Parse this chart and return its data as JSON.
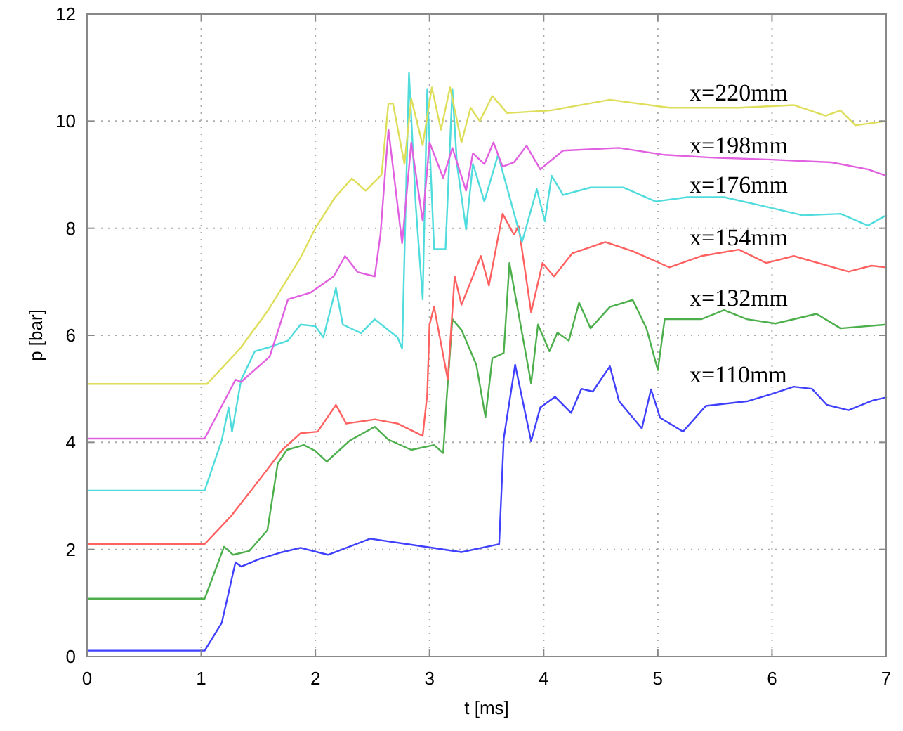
{
  "chart_data": {
    "type": "line",
    "xlabel": "t [ms]",
    "ylabel": "p [bar]",
    "xlim": [
      0,
      7
    ],
    "ylim": [
      0,
      12
    ],
    "xticks": [
      0,
      1,
      2,
      3,
      4,
      5,
      6,
      7
    ],
    "yticks": [
      0,
      2,
      4,
      6,
      8,
      10,
      12
    ],
    "grid": true,
    "line_style": "solid",
    "marker": "none",
    "series": [
      {
        "name": "x=110mm",
        "color": "#4040ff",
        "x": [
          0,
          1.03,
          1.18,
          1.3,
          1.35,
          1.51,
          1.71,
          1.87,
          2.11,
          2.48,
          2.8,
          3.28,
          3.61,
          3.65,
          3.75,
          3.89,
          3.97,
          4.1,
          4.24,
          4.33,
          4.43,
          4.58,
          4.66,
          4.86,
          4.94,
          5.02,
          5.22,
          5.42,
          5.79,
          5.99,
          6.19,
          6.35,
          6.48,
          6.67,
          6.88,
          7
        ],
        "values": [
          0.11,
          0.11,
          0.63,
          1.76,
          1.68,
          1.82,
          1.95,
          2.03,
          1.9,
          2.2,
          2.1,
          1.95,
          2.1,
          4.07,
          5.45,
          4.02,
          4.65,
          4.85,
          4.55,
          5.0,
          4.95,
          5.42,
          4.77,
          4.26,
          4.99,
          4.46,
          4.2,
          4.68,
          4.77,
          4.9,
          5.04,
          5.0,
          4.7,
          4.6,
          4.78,
          4.84
        ]
      },
      {
        "name": "x=132mm",
        "color": "#4caf4c",
        "x": [
          0,
          1.03,
          1.2,
          1.28,
          1.42,
          1.58,
          1.67,
          1.75,
          1.9,
          2.0,
          2.1,
          2.3,
          2.52,
          2.64,
          2.84,
          3.04,
          3.12,
          3.15,
          3.2,
          3.28,
          3.41,
          3.49,
          3.55,
          3.65,
          3.7,
          3.89,
          3.95,
          4.05,
          4.12,
          4.22,
          4.31,
          4.41,
          4.58,
          4.78,
          4.9,
          5.0,
          5.06,
          5.38,
          5.58,
          5.78,
          6.03,
          6.39,
          6.6,
          7
        ],
        "values": [
          1.08,
          1.08,
          2.05,
          1.9,
          1.97,
          2.36,
          3.6,
          3.86,
          3.95,
          3.84,
          3.64,
          4.03,
          4.29,
          4.05,
          3.86,
          3.95,
          3.8,
          4.82,
          6.3,
          6.1,
          5.45,
          4.47,
          5.57,
          5.67,
          7.35,
          5.1,
          6.2,
          5.7,
          6.05,
          5.9,
          6.61,
          6.13,
          6.53,
          6.66,
          6.13,
          5.35,
          6.3,
          6.3,
          6.47,
          6.3,
          6.22,
          6.4,
          6.13,
          6.2
        ]
      },
      {
        "name": "x=154mm",
        "color": "#ff6060",
        "x": [
          0,
          1.03,
          1.26,
          1.52,
          1.71,
          1.87,
          2.02,
          2.18,
          2.27,
          2.52,
          2.72,
          2.94,
          2.98,
          3.0,
          3.04,
          3.16,
          3.22,
          3.28,
          3.45,
          3.52,
          3.64,
          3.74,
          3.78,
          3.89,
          3.99,
          4.09,
          4.25,
          4.54,
          4.78,
          5.1,
          5.38,
          5.71,
          5.95,
          6.19,
          6.67,
          6.87,
          7
        ],
        "values": [
          2.1,
          2.1,
          2.62,
          3.33,
          3.86,
          4.17,
          4.2,
          4.7,
          4.35,
          4.43,
          4.35,
          4.12,
          4.9,
          6.2,
          6.53,
          5.17,
          7.1,
          6.57,
          7.48,
          6.93,
          8.27,
          7.88,
          8.04,
          6.43,
          7.35,
          7.1,
          7.53,
          7.74,
          7.57,
          7.27,
          7.48,
          7.6,
          7.35,
          7.48,
          7.19,
          7.3,
          7.27
        ]
      },
      {
        "name": "x=176mm",
        "color": "#50dcdc",
        "x": [
          0,
          1.03,
          1.18,
          1.24,
          1.27,
          1.35,
          1.47,
          1.6,
          1.76,
          1.87,
          2.0,
          2.07,
          2.18,
          2.24,
          2.4,
          2.52,
          2.72,
          2.76,
          2.82,
          2.88,
          2.94,
          2.98,
          3.04,
          3.14,
          3.2,
          3.24,
          3.32,
          3.38,
          3.48,
          3.6,
          3.81,
          3.94,
          4.01,
          4.07,
          4.17,
          4.41,
          4.7,
          4.98,
          5.26,
          5.58,
          5.91,
          6.27,
          6.6,
          6.84,
          7
        ],
        "values": [
          3.1,
          3.1,
          4.04,
          4.65,
          4.2,
          5.17,
          5.7,
          5.78,
          5.9,
          6.2,
          6.17,
          5.96,
          6.88,
          6.2,
          6.04,
          6.3,
          5.96,
          5.75,
          10.9,
          8.4,
          6.67,
          10.6,
          7.61,
          7.61,
          10.6,
          9.2,
          7.98,
          9.2,
          8.5,
          9.37,
          7.74,
          8.73,
          8.13,
          8.98,
          8.62,
          8.76,
          8.76,
          8.5,
          8.58,
          8.58,
          8.42,
          8.24,
          8.27,
          8.05,
          8.24
        ]
      },
      {
        "name": "x=198mm",
        "color": "#e060e0",
        "x": [
          0,
          1.03,
          1.3,
          1.35,
          1.6,
          1.69,
          1.76,
          1.96,
          2.16,
          2.26,
          2.37,
          2.52,
          2.57,
          2.64,
          2.76,
          2.84,
          2.94,
          3.0,
          3.12,
          3.2,
          3.32,
          3.38,
          3.48,
          3.56,
          3.64,
          3.74,
          3.85,
          3.97,
          4.17,
          4.66,
          5.06,
          5.46,
          6.0,
          6.52,
          6.84,
          7
        ],
        "values": [
          4.07,
          4.07,
          5.17,
          5.13,
          5.6,
          6.2,
          6.67,
          6.8,
          7.1,
          7.48,
          7.18,
          7.1,
          7.88,
          9.84,
          7.72,
          9.6,
          8.14,
          9.6,
          8.94,
          9.5,
          8.7,
          9.4,
          9.2,
          9.6,
          9.15,
          9.23,
          9.54,
          9.1,
          9.45,
          9.5,
          9.37,
          9.32,
          9.28,
          9.23,
          9.1,
          8.98
        ]
      },
      {
        "name": "x=220mm",
        "color": "#dede5a",
        "x": [
          0,
          1.05,
          1.34,
          1.59,
          1.87,
          2.0,
          2.17,
          2.32,
          2.44,
          2.58,
          2.64,
          2.68,
          2.78,
          2.84,
          2.94,
          3.02,
          3.1,
          3.18,
          3.28,
          3.36,
          3.44,
          3.55,
          3.68,
          4.06,
          4.58,
          5.1,
          5.71,
          6.19,
          6.47,
          6.6,
          6.73,
          7
        ],
        "values": [
          5.09,
          5.09,
          5.75,
          6.48,
          7.45,
          8.0,
          8.57,
          8.93,
          8.7,
          9.0,
          10.33,
          10.33,
          9.2,
          10.42,
          9.55,
          10.63,
          9.84,
          10.63,
          9.6,
          10.25,
          10.0,
          10.47,
          10.15,
          10.2,
          10.4,
          10.25,
          10.25,
          10.3,
          10.1,
          10.2,
          9.92,
          10.0
        ]
      }
    ]
  }
}
